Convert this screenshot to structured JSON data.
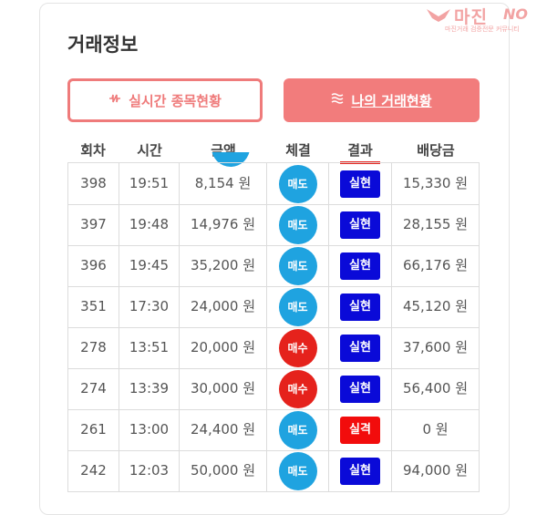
{
  "header": {
    "title": "거래정보"
  },
  "logo": {
    "main": "마진",
    "suffix": "NO",
    "sub": "마진거래 검증전문 커뮤니티"
  },
  "tabs": {
    "live_label": "실시간 종목현황",
    "mine_label": "나의 거래현황"
  },
  "table": {
    "columns": [
      "회차",
      "시간",
      "금액",
      "체결",
      "결과",
      "배당금"
    ],
    "rows": [
      {
        "round": "398",
        "time": "19:51",
        "amount": "8,154 원",
        "trade": "매도",
        "result": "실현",
        "payout": "15,330 원"
      },
      {
        "round": "397",
        "time": "19:48",
        "amount": "14,976 원",
        "trade": "매도",
        "result": "실현",
        "payout": "28,155 원"
      },
      {
        "round": "396",
        "time": "19:45",
        "amount": "35,200 원",
        "trade": "매도",
        "result": "실현",
        "payout": "66,176 원"
      },
      {
        "round": "351",
        "time": "17:30",
        "amount": "24,000 원",
        "trade": "매도",
        "result": "실현",
        "payout": "45,120 원"
      },
      {
        "round": "278",
        "time": "13:51",
        "amount": "20,000 원",
        "trade": "매수",
        "result": "실현",
        "payout": "37,600 원"
      },
      {
        "round": "274",
        "time": "13:39",
        "amount": "30,000 원",
        "trade": "매수",
        "result": "실현",
        "payout": "56,400 원"
      },
      {
        "round": "261",
        "time": "13:00",
        "amount": "24,400 원",
        "trade": "매도",
        "result": "실격",
        "payout": "0 원"
      },
      {
        "round": "242",
        "time": "12:03",
        "amount": "50,000 원",
        "trade": "매도",
        "result": "실현",
        "payout": "94,000 원"
      }
    ]
  },
  "colors": {
    "accent": "#f27c7c",
    "sell": "#1fa3e0",
    "buy": "#e5221c",
    "result_hit": "#0a0ad8",
    "result_miss": "#f20c0c"
  },
  "icons": {
    "live_tab": "pulse-icon",
    "mine_tab": "waves-icon"
  }
}
